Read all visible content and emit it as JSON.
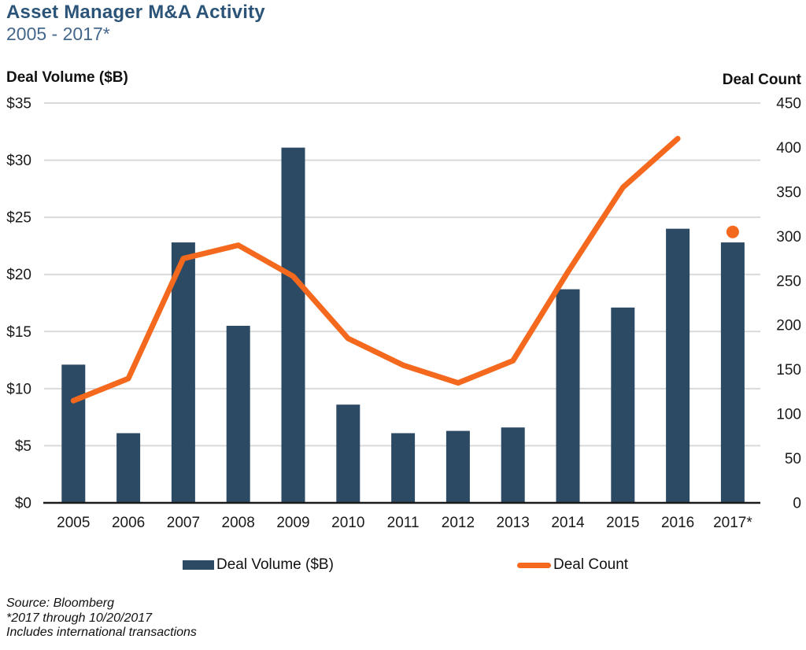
{
  "header": {
    "title": "Asset Manager M&A Activity",
    "subtitle": "2005 - 2017*"
  },
  "chart_data": {
    "type": "combo-bar-line",
    "categories": [
      "2005",
      "2006",
      "2007",
      "2008",
      "2009",
      "2010",
      "2011",
      "2012",
      "2013",
      "2014",
      "2015",
      "2016",
      "2017*"
    ],
    "left_axis": {
      "title": "Deal Volume ($B)",
      "min": 0,
      "max": 35,
      "step": 5,
      "tick_prefix": "$"
    },
    "right_axis": {
      "title": "Deal Count",
      "min": 0,
      "max": 450,
      "step": 50,
      "tick_prefix": ""
    },
    "grid": true,
    "legend_position": "bottom",
    "series": [
      {
        "name": "Deal Volume ($B)",
        "type": "bar",
        "axis": "left",
        "color": "#2C4A63",
        "values": [
          12.1,
          6.1,
          22.8,
          15.5,
          31.1,
          8.6,
          6.1,
          6.3,
          6.6,
          18.7,
          17.1,
          24.0,
          22.8
        ]
      },
      {
        "name": "Deal Count",
        "type": "line",
        "axis": "right",
        "color": "#F4691E",
        "values": [
          115,
          140,
          275,
          290,
          255,
          185,
          155,
          135,
          160,
          260,
          355,
          410,
          305
        ],
        "line_end_index": 11,
        "marker_indices": [
          12
        ]
      }
    ]
  },
  "footnotes": {
    "line1": "Source: Bloomberg",
    "line2": "*2017 through 10/20/2017",
    "line3": "Includes international transactions"
  },
  "colors": {
    "title": "#2B5478",
    "subtitle": "#44678C",
    "gridline": "#D9D9D9",
    "axis_line": "#1A1A1A"
  }
}
